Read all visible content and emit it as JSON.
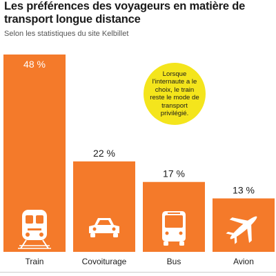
{
  "title": "Les préférences des voyageurs en matière de transport longue distance",
  "subtitle": "Selon les statistiques du site Kelbillet",
  "callout": "Lorsque l'internaute a le choix, le train reste le mode de transport privilégié.",
  "colors": {
    "bar": "#f47a2a",
    "callout": "#f4e51c",
    "icon": "#ffffff",
    "text": "#1a1a1a"
  },
  "chart_data": {
    "type": "bar",
    "categories": [
      "Train",
      "Covoiturage",
      "Bus",
      "Avion"
    ],
    "values": [
      48,
      22,
      17,
      13
    ],
    "value_labels": [
      "48 %",
      "22 %",
      "17 %",
      "13 %"
    ],
    "icons": [
      "train-icon",
      "car-icon",
      "bus-icon",
      "plane-icon"
    ],
    "ylim": [
      0,
      48
    ]
  }
}
